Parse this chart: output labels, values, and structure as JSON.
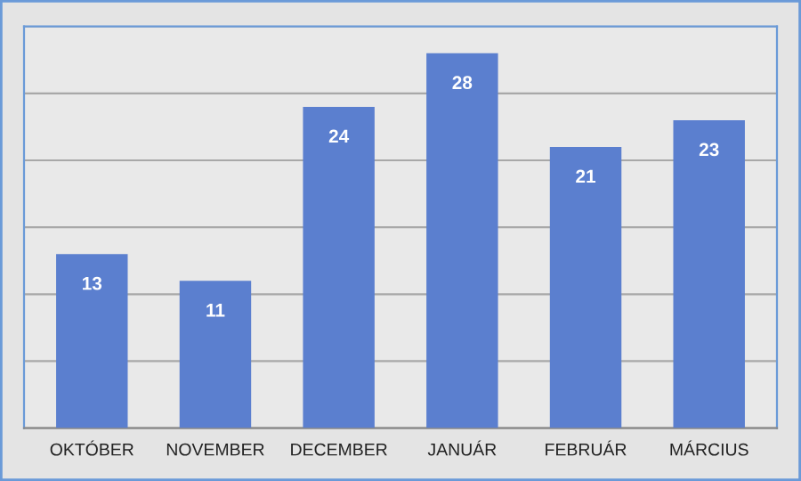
{
  "chart_data": {
    "type": "bar",
    "categories": [
      "OKTÓBER",
      "NOVEMBER",
      "DECEMBER",
      "JANUÁR",
      "FEBRUÁR",
      "MÁRCIUS"
    ],
    "values": [
      13,
      11,
      24,
      28,
      21,
      23
    ],
    "color": "#5b7fcf",
    "data_labels": true,
    "ylim": [
      0,
      30
    ],
    "yticks": [
      {
        "value": 0,
        "label": null
      },
      {
        "value": 5,
        "label": null
      },
      {
        "value": 10,
        "label": null
      },
      {
        "value": 15,
        "label": null
      },
      {
        "value": 20,
        "label": null
      },
      {
        "value": 25,
        "label": null
      },
      {
        "value": 30,
        "label": null
      }
    ],
    "grid": "y"
  }
}
